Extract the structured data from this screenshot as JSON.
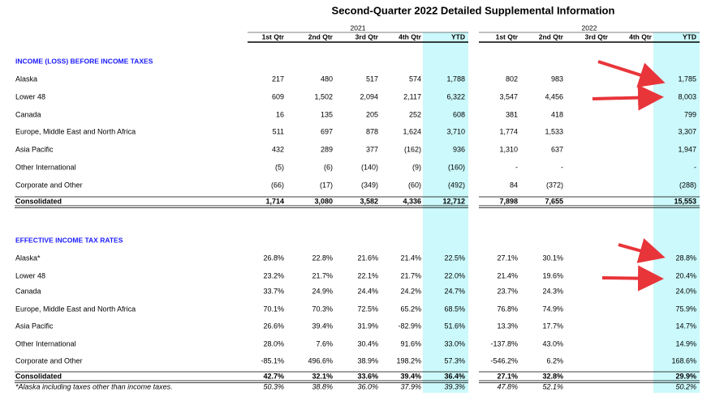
{
  "header": {
    "title": "Second-Quarter 2022 Detailed Supplemental Information"
  },
  "years": [
    "2021",
    "2022"
  ],
  "columns": [
    "1st Qtr",
    "2nd Qtr",
    "3rd Qtr",
    "4th Qtr",
    "YTD"
  ],
  "sections": [
    {
      "heading": "INCOME (LOSS) BEFORE INCOME TAXES",
      "rows": [
        {
          "label": "Alaska",
          "y2021": [
            "217",
            "480",
            "517",
            "574",
            "1,788"
          ],
          "y2022": [
            "802",
            "983",
            null,
            null,
            "1,785"
          ]
        },
        {
          "label": "Lower 48",
          "y2021": [
            "609",
            "1,502",
            "2,094",
            "2,117",
            "6,322"
          ],
          "y2022": [
            "3,547",
            "4,456",
            null,
            null,
            "8,003"
          ]
        },
        {
          "label": "Canada",
          "y2021": [
            "16",
            "135",
            "205",
            "252",
            "608"
          ],
          "y2022": [
            "381",
            "418",
            null,
            null,
            "799"
          ]
        },
        {
          "label": "Europe, Middle East and North Africa",
          "y2021": [
            "511",
            "697",
            "878",
            "1,624",
            "3,710"
          ],
          "y2022": [
            "1,774",
            "1,533",
            null,
            null,
            "3,307"
          ]
        },
        {
          "label": "Asia Pacific",
          "y2021": [
            "432",
            "289",
            "377",
            "(162)",
            "936"
          ],
          "y2022": [
            "1,310",
            "637",
            null,
            null,
            "1,947"
          ]
        },
        {
          "label": "Other International",
          "y2021": [
            "(5)",
            "(6)",
            "(140)",
            "(9)",
            "(160)"
          ],
          "y2022": [
            "-",
            "-",
            null,
            null,
            "-"
          ]
        },
        {
          "label": "Corporate and Other",
          "y2021": [
            "(66)",
            "(17)",
            "(349)",
            "(60)",
            "(492)"
          ],
          "y2022": [
            "84",
            "(372)",
            null,
            null,
            "(288)"
          ]
        }
      ],
      "total": {
        "label": "Consolidated",
        "y2021": [
          "1,714",
          "3,080",
          "3,582",
          "4,336",
          "12,712"
        ],
        "y2022": [
          "7,898",
          "7,655",
          null,
          null,
          "15,553"
        ]
      }
    },
    {
      "heading": "EFFECTIVE INCOME TAX RATES",
      "rows": [
        {
          "label": "Alaska*",
          "y2021": [
            "26.8%",
            "22.8%",
            "21.6%",
            "21.4%",
            "22.5%"
          ],
          "y2022": [
            "27.1%",
            "30.1%",
            null,
            null,
            "28.8%"
          ]
        },
        {
          "label": "Lower 48",
          "y2021": [
            "23.2%",
            "21.7%",
            "22.1%",
            "21.7%",
            "22.0%"
          ],
          "y2022": [
            "21.4%",
            "19.6%",
            null,
            null,
            "20.4%"
          ]
        },
        {
          "label": "Canada",
          "y2021": [
            "33.7%",
            "24.9%",
            "24.4%",
            "24.2%",
            "24.7%"
          ],
          "y2022": [
            "23.7%",
            "24.3%",
            null,
            null,
            "24.0%"
          ]
        },
        {
          "label": "Europe, Middle East and North Africa",
          "y2021": [
            "70.1%",
            "70.3%",
            "72.5%",
            "65.2%",
            "68.5%"
          ],
          "y2022": [
            "76.8%",
            "74.9%",
            null,
            null,
            "75.9%"
          ]
        },
        {
          "label": "Asia Pacific",
          "y2021": [
            "26.6%",
            "39.4%",
            "31.9%",
            "-82.9%",
            "51.6%"
          ],
          "y2022": [
            "13.3%",
            "17.7%",
            null,
            null,
            "14.7%"
          ]
        },
        {
          "label": "Other International",
          "y2021": [
            "28.0%",
            "7.6%",
            "30.4%",
            "91.6%",
            "33.0%"
          ],
          "y2022": [
            "-137.8%",
            "43.0%",
            null,
            null,
            "14.9%"
          ]
        },
        {
          "label": "Corporate and Other",
          "y2021": [
            "-85.1%",
            "496.6%",
            "38.9%",
            "198.2%",
            "57.3%"
          ],
          "y2022": [
            "-546.2%",
            "6.2%",
            null,
            null,
            "168.6%"
          ]
        }
      ],
      "total": {
        "label": "Consolidated",
        "y2021": [
          "42.7%",
          "32.1%",
          "33.6%",
          "39.4%",
          "36.4%"
        ],
        "y2022": [
          "27.1%",
          "32.8%",
          null,
          null,
          "29.9%"
        ]
      },
      "footnote": {
        "label": "*Alaska including taxes other than income taxes.",
        "y2021": [
          "50.3%",
          "38.8%",
          "36.0%",
          "37.9%",
          "39.3%"
        ],
        "y2022": [
          "47.8%",
          "52.1%",
          null,
          null,
          "50.2%"
        ]
      }
    }
  ]
}
